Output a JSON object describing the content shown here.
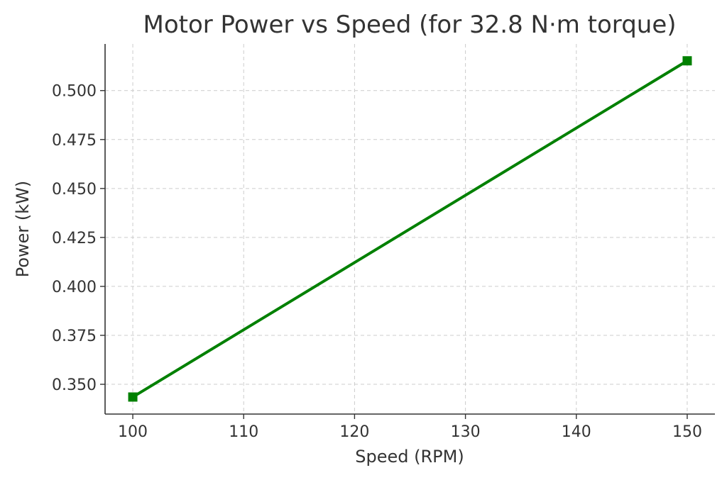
{
  "chart_data": {
    "type": "line",
    "title": "Motor Power vs Speed (for 32.8 N·m torque)",
    "xlabel": "Speed (RPM)",
    "ylabel": "Power (kW)",
    "x": [
      100,
      150
    ],
    "series": [
      {
        "values": [
          0.3435,
          0.5152
        ],
        "color": "#008000",
        "marker": "square"
      }
    ],
    "xlim": [
      97.5,
      152.5
    ],
    "ylim": [
      0.3348,
      0.5238
    ],
    "xticks": [
      100,
      110,
      120,
      130,
      140,
      150
    ],
    "xtick_labels": [
      "100",
      "110",
      "120",
      "130",
      "140",
      "150"
    ],
    "yticks": [
      0.35,
      0.375,
      0.4,
      0.425,
      0.45,
      0.475,
      0.5
    ],
    "ytick_labels": [
      "0.350",
      "0.375",
      "0.400",
      "0.425",
      "0.450",
      "0.475",
      "0.500"
    ],
    "grid": true
  }
}
